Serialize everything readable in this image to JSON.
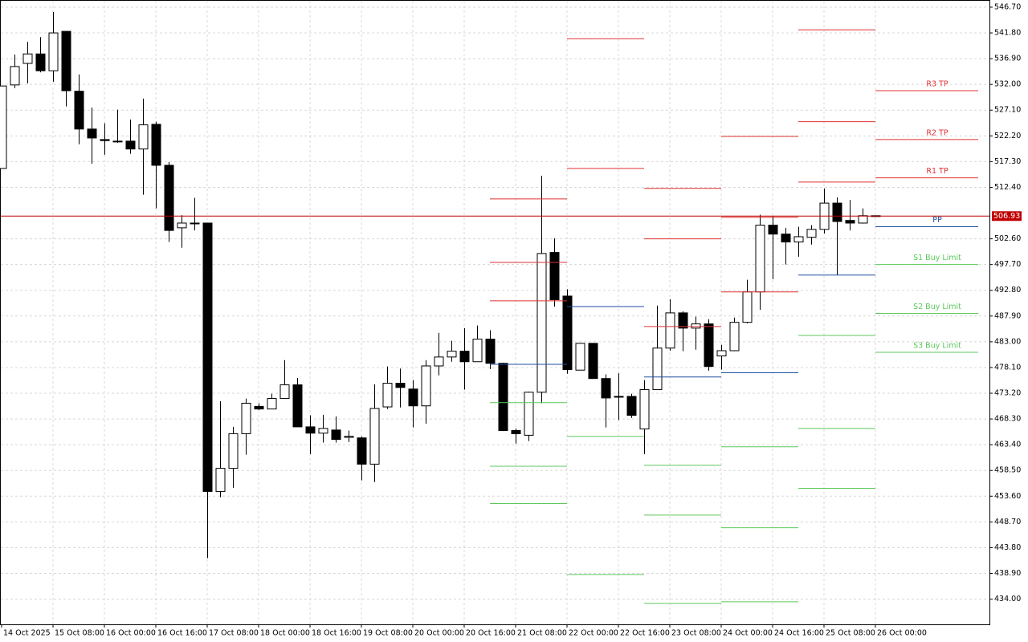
{
  "chart_data": {
    "type": "candlestick",
    "categories": [
      "14 Oct 2025",
      null,
      null,
      null,
      "15 Oct 08:00",
      null,
      null,
      null,
      "16 Oct 00:00",
      null,
      null,
      null,
      "16 Oct 16:00",
      null,
      null,
      null,
      "17 Oct 08:00",
      null,
      null,
      null,
      "18 Oct 00:00",
      null,
      null,
      null,
      "18 Oct 16:00",
      null,
      null,
      null,
      "19 Oct 08:00",
      null,
      null,
      null,
      "20 Oct 00:00",
      null,
      null,
      null,
      "20 Oct 16:00",
      null,
      null,
      null,
      "21 Oct 08:00",
      null,
      null,
      null,
      "22 Oct 00:00",
      null,
      null,
      null,
      "22 Oct 16:00",
      null,
      null,
      null,
      "23 Oct 08:00",
      null,
      null,
      null,
      "24 Oct 00:00",
      null,
      null,
      null,
      "24 Oct 16:00",
      null,
      null,
      null,
      "25 Oct 08:00",
      null,
      null,
      null,
      "26 Oct 00:00"
    ],
    "open": [
      516.0,
      531.9,
      536.0,
      537.8,
      534.6,
      542.1,
      530.7,
      523.5,
      521.5,
      521.2,
      521.2,
      519.7,
      524.4,
      516.6,
      504.7,
      505.6,
      505.6,
      454.5,
      458.9,
      465.5,
      470.7,
      470.2,
      472.2,
      474.8,
      466.8,
      465.6,
      466.2,
      464.8,
      464.7,
      459.7,
      470.6,
      475.1,
      474.0,
      470.8,
      478.4,
      480.1,
      481.2,
      479.2,
      483.5,
      478.9,
      466.1,
      465.2,
      473.4,
      500.0,
      491.7,
      477.6,
      482.7,
      476.0,
      472.6,
      472.6,
      466.4,
      473.9,
      481.8,
      488.5,
      485.6,
      486.4,
      480.3,
      481.3,
      486.7,
      492.5,
      505.2,
      503.5,
      502.0,
      502.9,
      504.4,
      509.4,
      506.1,
      505.6,
      507.0
    ],
    "high": [
      531.7,
      537.7,
      540.1,
      541.0,
      545.8,
      542.1,
      533.9,
      527.6,
      524.6,
      527.2,
      525.3,
      529.3,
      524.9,
      517.2,
      507.1,
      510.4,
      505.6,
      471.7,
      466.8,
      472.2,
      471.3,
      473.1,
      479.5,
      476.1,
      469.0,
      469.1,
      468.8,
      466.1,
      465.0,
      474.9,
      478.3,
      477.9,
      475.7,
      479.5,
      484.7,
      483.2,
      485.6,
      486.1,
      485.2,
      479.0,
      466.5,
      473.5,
      514.6,
      502.7,
      493.0,
      482.7,
      482.7,
      476.8,
      477.0,
      473.1,
      475.7,
      489.9,
      491.1,
      488.8,
      487.8,
      487.3,
      482.4,
      487.6,
      494.8,
      507.2,
      507.0,
      504.7,
      504.9,
      505.2,
      512.2,
      510.5,
      510.0,
      508.4,
      507.0
    ],
    "low": [
      516.0,
      531.3,
      532.2,
      534.3,
      532.5,
      527.8,
      520.6,
      516.9,
      518.6,
      520.9,
      518.8,
      511.0,
      508.4,
      502.0,
      500.9,
      504.2,
      441.8,
      453.4,
      455.2,
      461.5,
      470.0,
      470.2,
      472.2,
      466.8,
      461.6,
      463.8,
      463.8,
      463.9,
      456.6,
      456.3,
      470.2,
      470.5,
      466.7,
      467.4,
      476.6,
      479.2,
      473.9,
      479.2,
      477.8,
      466.0,
      463.6,
      464.1,
      471.3,
      489.7,
      476.9,
      477.6,
      476.0,
      466.7,
      468.1,
      468.5,
      461.6,
      473.9,
      481.3,
      481.2,
      481.5,
      477.5,
      477.7,
      481.2,
      486.5,
      489.1,
      494.9,
      497.7,
      499.2,
      501.5,
      503.6,
      495.7,
      504.2,
      505.5,
      506.9
    ],
    "close": [
      531.7,
      535.4,
      537.8,
      534.6,
      541.8,
      530.8,
      523.5,
      521.8,
      521.3,
      521.1,
      519.7,
      524.3,
      516.6,
      504.2,
      505.6,
      505.5,
      454.5,
      458.9,
      465.5,
      471.3,
      470.2,
      472.2,
      474.8,
      466.8,
      465.6,
      466.5,
      464.4,
      465.0,
      459.7,
      470.3,
      475.1,
      474.3,
      470.8,
      478.4,
      480.1,
      481.2,
      479.2,
      483.5,
      478.9,
      466.1,
      465.5,
      473.4,
      499.8,
      491.0,
      477.7,
      482.7,
      476.0,
      472.3,
      472.5,
      469.0,
      473.9,
      481.8,
      488.5,
      485.6,
      486.4,
      478.3,
      481.3,
      486.7,
      492.5,
      505.2,
      503.5,
      502.0,
      503.0,
      504.4,
      509.4,
      505.9,
      505.6,
      507.0,
      506.9
    ],
    "up_color": "#ffffff",
    "down_color": "#000000",
    "current_price": 506.93,
    "current_price_color": "#c00000",
    "pivots": [
      {
        "name": "R3 TP",
        "color": "#e03030",
        "values": [
          510.2,
          540.7,
          512.2,
          522.1,
          542.4,
          530.8
        ]
      },
      {
        "name": "R2 TP",
        "color": "#e03030",
        "values": [
          498.1,
          516.0,
          502.6,
          506.7,
          524.9,
          521.5
        ]
      },
      {
        "name": "R1 TP",
        "color": "#e03030",
        "values": [
          490.8,
          null,
          485.9,
          492.5,
          513.4,
          514.2
        ]
      },
      {
        "name": "PP",
        "color": "#1f4fa0",
        "values": [
          478.7,
          489.7,
          476.3,
          477.1,
          495.7,
          504.9
        ]
      },
      {
        "name": "S1 Buy Limit",
        "color": "#5cc85c",
        "values": [
          471.4,
          null,
          459.5,
          463.0,
          484.2,
          497.7
        ]
      },
      {
        "name": "S2 Buy Limit",
        "color": "#5cc85c",
        "values": [
          459.3,
          465.0,
          450.0,
          447.6,
          466.5,
          488.4
        ]
      },
      {
        "name": "S3 Buy Limit",
        "color": "#5cc85c",
        "values": [
          452.2,
          438.7,
          433.2,
          433.5,
          455.1,
          481.0
        ]
      }
    ],
    "ylim": [
      429.2,
      548.07
    ],
    "yticks": [
      {
        "value": 546.7,
        "label": "546.70"
      },
      {
        "value": 541.8,
        "label": "541.80"
      },
      {
        "value": 536.9,
        "label": "536.90"
      },
      {
        "value": 532.0,
        "label": "532.00"
      },
      {
        "value": 527.1,
        "label": "527.10"
      },
      {
        "value": 522.2,
        "label": "522.20"
      },
      {
        "value": 517.3,
        "label": "517.30"
      },
      {
        "value": 512.4,
        "label": "512.40"
      },
      {
        "value": 502.6,
        "label": "502.60"
      },
      {
        "value": 497.7,
        "label": "497.70"
      },
      {
        "value": 492.8,
        "label": "492.80"
      },
      {
        "value": 487.9,
        "label": "487.90"
      },
      {
        "value": 483.0,
        "label": "483.00"
      },
      {
        "value": 478.1,
        "label": "478.10"
      },
      {
        "value": 473.2,
        "label": "473.20"
      },
      {
        "value": 468.3,
        "label": "468.30"
      },
      {
        "value": 463.4,
        "label": "463.40"
      },
      {
        "value": 458.5,
        "label": "458.50"
      },
      {
        "value": 453.6,
        "label": "453.60"
      },
      {
        "value": 448.7,
        "label": "448.70"
      },
      {
        "value": 443.8,
        "label": "443.80"
      },
      {
        "value": 438.9,
        "label": "438.90"
      },
      {
        "value": 434.0,
        "label": "434.00"
      }
    ],
    "grid": true
  }
}
